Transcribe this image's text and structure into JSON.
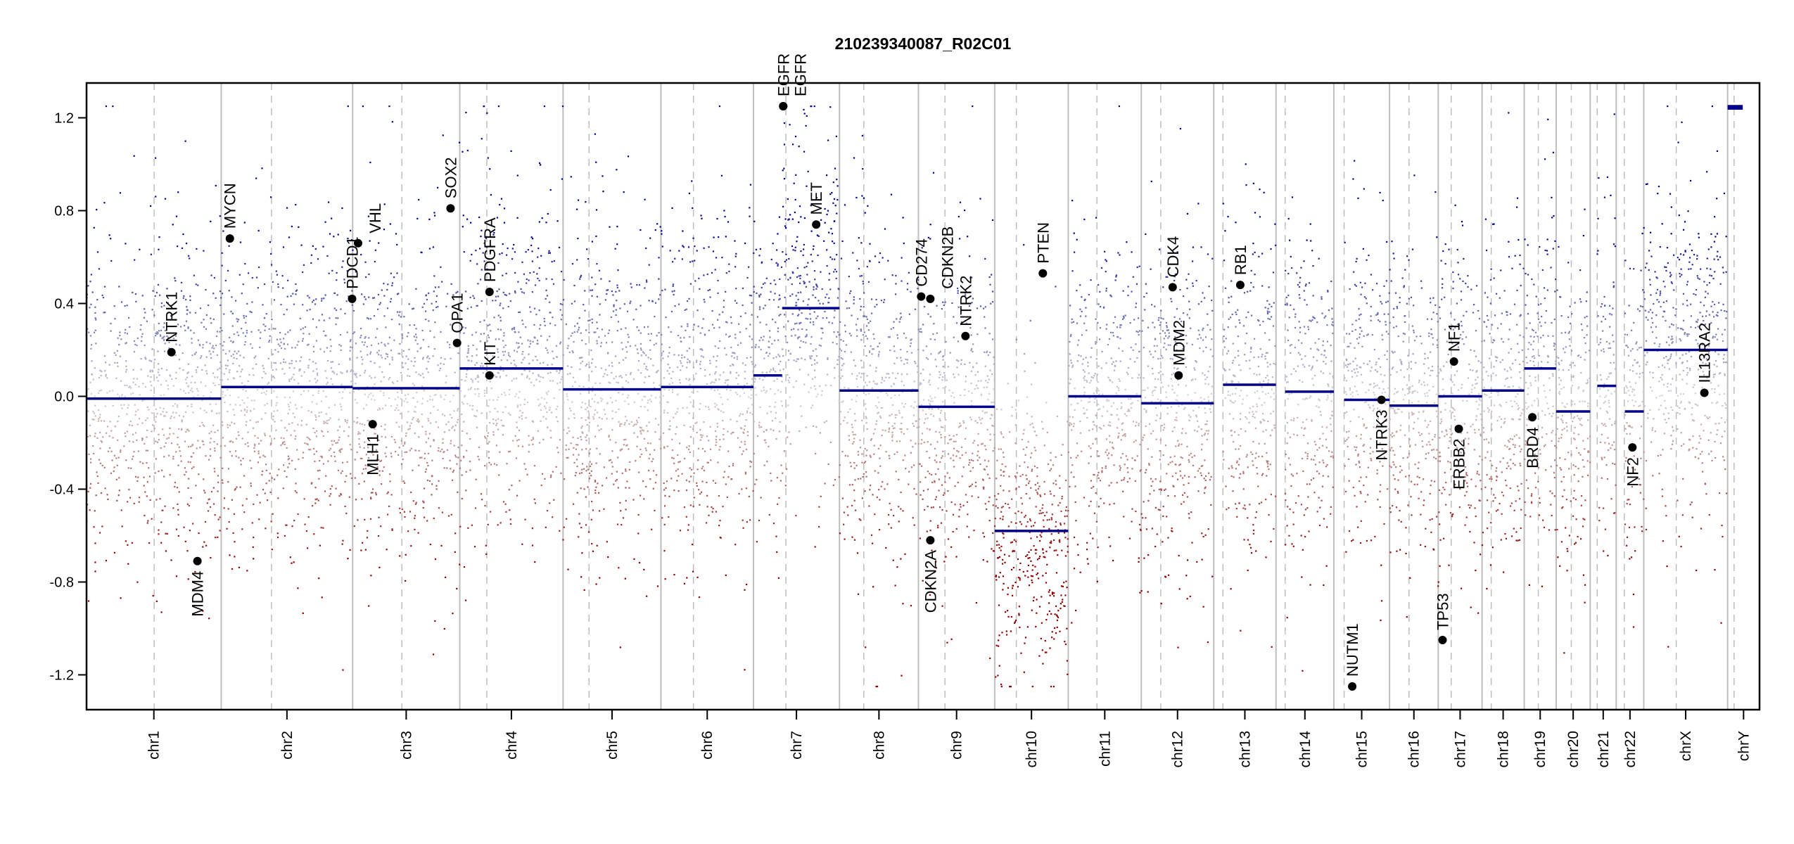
{
  "chart_data": {
    "type": "scatter",
    "title": "210239340087_R02C01",
    "xlabel": "",
    "ylabel": "",
    "ylim": [
      -1.35,
      1.35
    ],
    "yticks": [
      -1.2,
      -0.8,
      -0.4,
      0.0,
      0.4,
      0.8,
      1.2
    ],
    "ytick_labels": [
      "-1.2",
      "-0.8",
      "-0.4",
      "0.0",
      "0.4",
      "0.8",
      "1.2"
    ],
    "grid": false,
    "point_clip": 1.25,
    "colors": {
      "gain": "#00008b",
      "loss": "#8b0000",
      "neutral": "#d3d3d3",
      "segment": "#00008b",
      "boundary": "#bebebe",
      "gene": "#000000"
    },
    "chromosomes": [
      {
        "name": "chr1",
        "length_mb": 249,
        "centromere_mb": 125
      },
      {
        "name": "chr2",
        "length_mb": 243,
        "centromere_mb": 93
      },
      {
        "name": "chr3",
        "length_mb": 198,
        "centromere_mb": 91
      },
      {
        "name": "chr4",
        "length_mb": 191,
        "centromere_mb": 50
      },
      {
        "name": "chr5",
        "length_mb": 181,
        "centromere_mb": 48
      },
      {
        "name": "chr6",
        "length_mb": 171,
        "centromere_mb": 60
      },
      {
        "name": "chr7",
        "length_mb": 159,
        "centromere_mb": 60
      },
      {
        "name": "chr8",
        "length_mb": 146,
        "centromere_mb": 45
      },
      {
        "name": "chr9",
        "length_mb": 141,
        "centromere_mb": 49
      },
      {
        "name": "chr10",
        "length_mb": 136,
        "centromere_mb": 40
      },
      {
        "name": "chr11",
        "length_mb": 135,
        "centromere_mb": 53
      },
      {
        "name": "chr12",
        "length_mb": 134,
        "centromere_mb": 36
      },
      {
        "name": "chr13",
        "length_mb": 115,
        "centromere_mb": 17
      },
      {
        "name": "chr14",
        "length_mb": 107,
        "centromere_mb": 17
      },
      {
        "name": "chr15",
        "length_mb": 103,
        "centromere_mb": 19
      },
      {
        "name": "chr16",
        "length_mb": 90,
        "centromere_mb": 36
      },
      {
        "name": "chr17",
        "length_mb": 81,
        "centromere_mb": 24
      },
      {
        "name": "chr18",
        "length_mb": 78,
        "centromere_mb": 17
      },
      {
        "name": "chr19",
        "length_mb": 59,
        "centromere_mb": 26
      },
      {
        "name": "chr20",
        "length_mb": 63,
        "centromere_mb": 28
      },
      {
        "name": "chr21",
        "length_mb": 48,
        "centromere_mb": 13
      },
      {
        "name": "chr22",
        "length_mb": 51,
        "centromere_mb": 15
      },
      {
        "name": "chrX",
        "length_mb": 155,
        "centromere_mb": 60
      },
      {
        "name": "chrY",
        "length_mb": 59,
        "centromere_mb": 12
      }
    ],
    "segments": [
      {
        "chr": "chr1",
        "start": 0,
        "end": 249,
        "value": -0.01
      },
      {
        "chr": "chr2",
        "start": 0,
        "end": 243,
        "value": 0.04
      },
      {
        "chr": "chr3",
        "start": 0,
        "end": 198,
        "value": 0.035
      },
      {
        "chr": "chr4",
        "start": 0,
        "end": 191,
        "value": 0.12
      },
      {
        "chr": "chr5",
        "start": 0,
        "end": 181,
        "value": 0.03
      },
      {
        "chr": "chr6",
        "start": 0,
        "end": 171,
        "value": 0.04
      },
      {
        "chr": "chr7",
        "start": 0,
        "end": 53,
        "value": 0.09
      },
      {
        "chr": "chr7",
        "start": 53,
        "end": 159,
        "value": 0.38
      },
      {
        "chr": "chr8",
        "start": 0,
        "end": 146,
        "value": 0.025
      },
      {
        "chr": "chr9",
        "start": 0,
        "end": 141,
        "value": -0.045
      },
      {
        "chr": "chr10",
        "start": 0,
        "end": 136,
        "value": -0.58
      },
      {
        "chr": "chr11",
        "start": 0,
        "end": 135,
        "value": 0.0
      },
      {
        "chr": "chr12",
        "start": 0,
        "end": 134,
        "value": -0.03
      },
      {
        "chr": "chr13",
        "start": 17,
        "end": 115,
        "value": 0.05
      },
      {
        "chr": "chr14",
        "start": 17,
        "end": 107,
        "value": 0.02
      },
      {
        "chr": "chr15",
        "start": 19,
        "end": 103,
        "value": -0.015
      },
      {
        "chr": "chr16",
        "start": 0,
        "end": 90,
        "value": -0.04
      },
      {
        "chr": "chr17",
        "start": 0,
        "end": 81,
        "value": 0.0
      },
      {
        "chr": "chr18",
        "start": 0,
        "end": 78,
        "value": 0.025
      },
      {
        "chr": "chr19",
        "start": 0,
        "end": 59,
        "value": 0.12
      },
      {
        "chr": "chr20",
        "start": 0,
        "end": 63,
        "value": -0.065
      },
      {
        "chr": "chr21",
        "start": 13,
        "end": 48,
        "value": 0.045
      },
      {
        "chr": "chr22",
        "start": 16,
        "end": 51,
        "value": -0.065
      },
      {
        "chr": "chrX",
        "start": 0,
        "end": 155,
        "value": 0.2
      },
      {
        "chr": "chrY",
        "start": 0,
        "end": 28,
        "value": 1.24
      },
      {
        "chr": "chrY",
        "start": 0,
        "end": 28,
        "value": 1.25
      }
    ],
    "genes": [
      {
        "name": "NTRK1",
        "chr": "chr1",
        "pos_mb": 157,
        "value": 0.19,
        "label_side": "above"
      },
      {
        "name": "MDM4",
        "chr": "chr1",
        "pos_mb": 205,
        "value": -0.71,
        "label_side": "below"
      },
      {
        "name": "MYCN",
        "chr": "chr2",
        "pos_mb": 16,
        "value": 0.68,
        "label_side": "above"
      },
      {
        "name": "PDCD1",
        "chr": "chr2",
        "pos_mb": 242,
        "value": 0.42,
        "label_side": "above"
      },
      {
        "name": "VHL",
        "chr": "chr3",
        "pos_mb": 10,
        "value": 0.66,
        "label_side": "above"
      },
      {
        "name": "MLH1",
        "chr": "chr3",
        "pos_mb": 37,
        "value": -0.12,
        "label_side": "below"
      },
      {
        "name": "SOX2",
        "chr": "chr3",
        "pos_mb": 181,
        "value": 0.81,
        "label_side": "above"
      },
      {
        "name": "OPA1",
        "chr": "chr3",
        "pos_mb": 193,
        "value": 0.23,
        "label_side": "above"
      },
      {
        "name": "PDGFRA",
        "chr": "chr4",
        "pos_mb": 55,
        "value": 0.45,
        "label_side": "above"
      },
      {
        "name": "KIT",
        "chr": "chr4",
        "pos_mb": 55,
        "value": 0.09,
        "label_side": "above"
      },
      {
        "name": "EGFR",
        "chr": "chr7",
        "pos_mb": 55,
        "value": 1.25,
        "label_side": "above"
      },
      {
        "name": "EGFR",
        "chr": "chr7",
        "pos_mb": 55,
        "value": 1.25,
        "label_side": "above"
      },
      {
        "name": "MET",
        "chr": "chr7",
        "pos_mb": 116,
        "value": 0.74,
        "label_side": "above"
      },
      {
        "name": "CD274",
        "chr": "chr9",
        "pos_mb": 5,
        "value": 0.43,
        "label_side": "above"
      },
      {
        "name": "CDKN2B",
        "chr": "chr9",
        "pos_mb": 22,
        "value": 0.42,
        "label_side": "above"
      },
      {
        "name": "CDKN2A",
        "chr": "chr9",
        "pos_mb": 22,
        "value": -0.62,
        "label_side": "below"
      },
      {
        "name": "NTRK2",
        "chr": "chr9",
        "pos_mb": 87,
        "value": 0.26,
        "label_side": "above"
      },
      {
        "name": "PTEN",
        "chr": "chr10",
        "pos_mb": 89,
        "value": 0.53,
        "label_side": "above"
      },
      {
        "name": "CDK4",
        "chr": "chr12",
        "pos_mb": 58,
        "value": 0.47,
        "label_side": "above"
      },
      {
        "name": "MDM2",
        "chr": "chr12",
        "pos_mb": 69,
        "value": 0.09,
        "label_side": "above"
      },
      {
        "name": "RB1",
        "chr": "chr13",
        "pos_mb": 49,
        "value": 0.48,
        "label_side": "above"
      },
      {
        "name": "NUTM1",
        "chr": "chr15",
        "pos_mb": 34,
        "value": -1.25,
        "label_side": "above"
      },
      {
        "name": "NTRK3",
        "chr": "chr15",
        "pos_mb": 88,
        "value": -0.015,
        "label_side": "below"
      },
      {
        "name": "TP53",
        "chr": "chr17",
        "pos_mb": 8,
        "value": -1.05,
        "label_side": "above"
      },
      {
        "name": "NF1",
        "chr": "chr17",
        "pos_mb": 29,
        "value": 0.15,
        "label_side": "above"
      },
      {
        "name": "ERBB2",
        "chr": "chr17",
        "pos_mb": 38,
        "value": -0.14,
        "label_side": "below"
      },
      {
        "name": "BRD4",
        "chr": "chr19",
        "pos_mb": 15,
        "value": -0.09,
        "label_side": "below"
      },
      {
        "name": "NF2",
        "chr": "chr22",
        "pos_mb": 30,
        "value": -0.22,
        "label_side": "below"
      },
      {
        "name": "IL13RA2",
        "chr": "chrX",
        "pos_mb": 112,
        "value": 0.015,
        "label_side": "above"
      }
    ]
  }
}
